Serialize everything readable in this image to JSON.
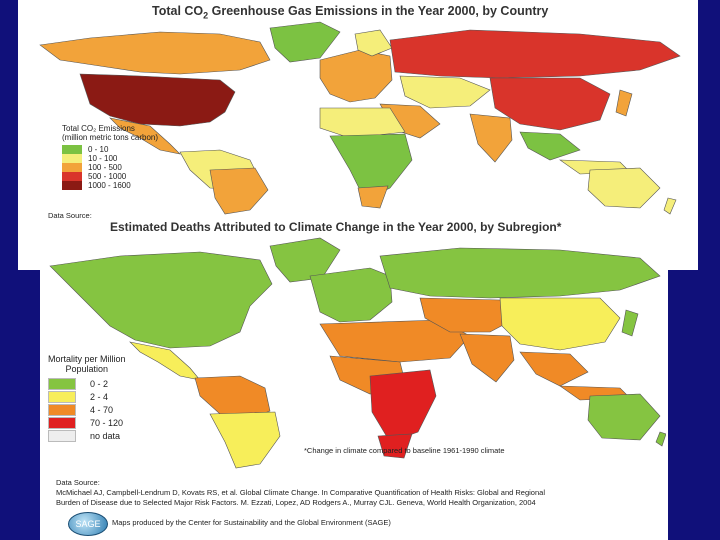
{
  "map_top": {
    "title_prefix": "Total CO",
    "title_sub": "2",
    "title_suffix": " Greenhouse Gas Emissions in the Year 2000, by Country",
    "legend_title": "Total CO₂ Emissions\n(million metric tons carbon)",
    "legend": [
      {
        "label": "0 - 10",
        "color": "#7cc242"
      },
      {
        "label": "10 - 100",
        "color": "#f5ee7a"
      },
      {
        "label": "100 - 500",
        "color": "#f2a33a"
      },
      {
        "label": "500 - 1000",
        "color": "#d9342b"
      },
      {
        "label": "1000 - 1600",
        "color": "#8b1a14"
      }
    ],
    "data_source_label": "Data Source:"
  },
  "map_bottom": {
    "title": "Estimated Deaths Attributed to Climate Change in the Year 2000, by Subregion*",
    "legend_title": "Mortality per Million\nPopulation",
    "legend": [
      {
        "label": "0 - 2",
        "color": "#85c441"
      },
      {
        "label": "2 - 4",
        "color": "#f7ee5a"
      },
      {
        "label": "4 - 70",
        "color": "#f08a26"
      },
      {
        "label": "70 - 120",
        "color": "#e02020"
      },
      {
        "label": "no data",
        "color": "#eeeeee"
      }
    ],
    "footnote": "*Change in climate compared to baseline 1961-1990 climate",
    "data_source_label": "Data Source:",
    "citation_line1": "McMichael AJ, Campbell-Lendrum D, Kovats RS, et al. Global Climate Change. In Comparative Quantification of Health Risks: Global and Regional",
    "citation_line2": "Burden of Disease due to Selected Major Risk Factors. M. Ezzati, Lopez, AD Rodgers A., Murray CJL. Geneva, World Health Organization, 2004",
    "logo_text": "SAGE",
    "credit": "Maps produced by the Center for Sustainability and the Global Environment (SAGE)"
  }
}
